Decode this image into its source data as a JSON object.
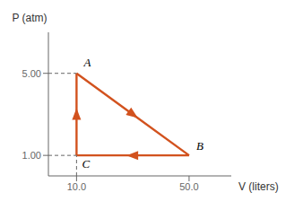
{
  "chart_data": {
    "type": "line",
    "xlabel": "V (liters)",
    "ylabel": "P (atm)",
    "xlim": [
      0,
      65
    ],
    "ylim": [
      0,
      7.0
    ],
    "xticks": [
      {
        "value": 10.0,
        "label": "10.0"
      },
      {
        "value": 50.0,
        "label": "50.0"
      }
    ],
    "yticks": [
      {
        "value": 1.0,
        "label": "1.00"
      },
      {
        "value": 5.0,
        "label": "5.00"
      }
    ],
    "grid": false,
    "series": [
      {
        "x": [
          10.0,
          10.0,
          50.0,
          10.0
        ],
        "values": [
          1.0,
          5.0,
          1.0,
          1.0
        ],
        "color": "#D2521E",
        "marker": "arrow",
        "line_style": "solid"
      },
      {
        "x": [
          0,
          10.0
        ],
        "values": [
          5.0,
          5.0
        ],
        "color": "#666666",
        "line_style": "dashed"
      },
      {
        "x": [
          10.0,
          10.0
        ],
        "values": [
          0,
          1.0
        ],
        "color": "#666666",
        "line_style": "dashed"
      },
      {
        "x": [
          0,
          10.0
        ],
        "values": [
          1.0,
          1.0
        ],
        "color": "#666666",
        "line_style": "dashed"
      }
    ],
    "annotations": [
      {
        "text": "A",
        "x": 10.0,
        "y": 5.0
      },
      {
        "text": "B",
        "x": 50.0,
        "y": 1.0
      },
      {
        "text": "C",
        "x": 10.0,
        "y": 1.0
      }
    ]
  }
}
